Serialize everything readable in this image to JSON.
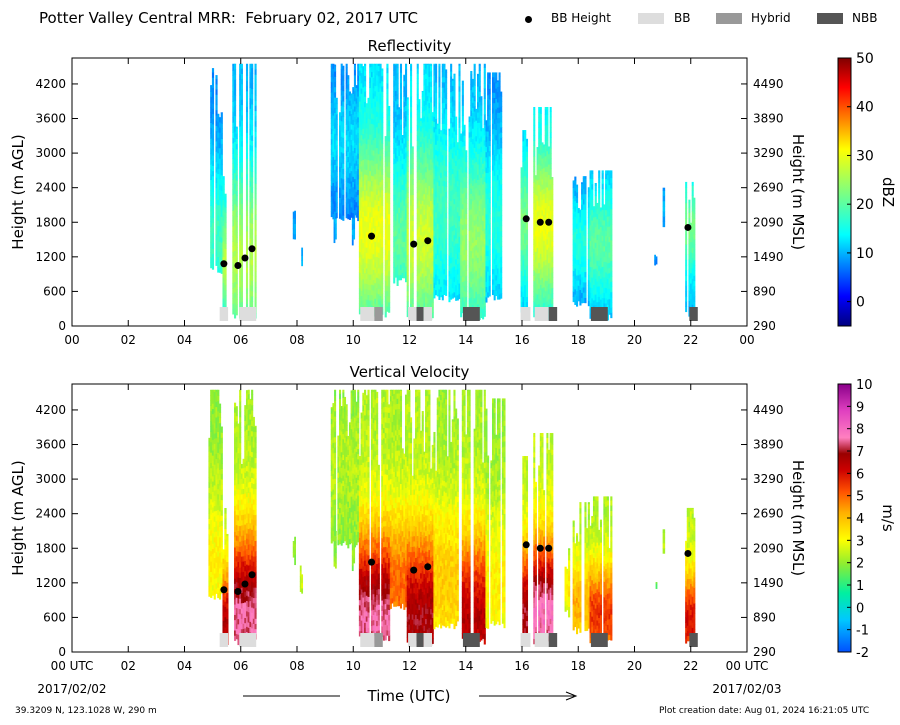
{
  "header": {
    "title": "Potter Valley Central MRR:  February 02, 2017 UTC",
    "legend": [
      {
        "label": "BB Height",
        "kind": "dot",
        "color": "#000000"
      },
      {
        "label": "BB",
        "kind": "box",
        "color": "#dddddd"
      },
      {
        "label": "Hybrid",
        "kind": "box",
        "color": "#999999"
      },
      {
        "label": "NBB",
        "kind": "box",
        "color": "#555555"
      }
    ]
  },
  "shared": {
    "x_ticks": [
      "00",
      "02",
      "04",
      "06",
      "08",
      "10",
      "12",
      "14",
      "16",
      "18",
      "20",
      "22",
      "00"
    ],
    "bottom_first_tick": "00 UTC",
    "bottom_last_tick": "00 UTC",
    "date_start": "2017/02/02",
    "date_end": "2017/02/03",
    "xlabel": "Time (UTC)",
    "ylabel_left": "Height (m AGL)",
    "ylabel_right": "Height (m MSL)",
    "y_ticks": [
      "4200",
      "3600",
      "3000",
      "2400",
      "1800",
      "1200",
      "600",
      "0"
    ],
    "y_ticks_right": [
      "4490",
      "3890",
      "3290",
      "2690",
      "2090",
      "1490",
      "890",
      "290"
    ]
  },
  "footer": {
    "location": "39.3209 N, 123.1028 W, 290 m",
    "created": "Plot creation date: Aug 01, 2024 16:21:05 UTC"
  },
  "chart_data": [
    {
      "type": "heatmap",
      "title": "Reflectivity",
      "xlabel": "Time (UTC)",
      "ylabel": "Height (m AGL)",
      "ylabel_right": "Height (m MSL)",
      "xlim": [
        0,
        24
      ],
      "ylim": [
        0,
        4650
      ],
      "colorbar": {
        "label": "dBZ",
        "min": -5,
        "max": 50,
        "ticks": [
          "50",
          "40",
          "30",
          "20",
          "10",
          "0"
        ],
        "tick_values": [
          50,
          40,
          30,
          20,
          10,
          0
        ]
      },
      "bb_height_points": [
        {
          "x": 5.4,
          "y": 1080
        },
        {
          "x": 5.9,
          "y": 1050
        },
        {
          "x": 6.15,
          "y": 1180
        },
        {
          "x": 6.4,
          "y": 1340
        },
        {
          "x": 10.65,
          "y": 1560
        },
        {
          "x": 12.15,
          "y": 1420
        },
        {
          "x": 12.65,
          "y": 1480
        },
        {
          "x": 16.15,
          "y": 1860
        },
        {
          "x": 16.65,
          "y": 1800
        },
        {
          "x": 16.95,
          "y": 1800
        },
        {
          "x": 21.9,
          "y": 1710
        }
      ],
      "bb_type_boxes": [
        {
          "start": 5.25,
          "end": 5.55,
          "type": "BB"
        },
        {
          "start": 5.95,
          "end": 6.55,
          "type": "BB"
        },
        {
          "start": 10.25,
          "end": 10.75,
          "type": "BB"
        },
        {
          "start": 10.75,
          "end": 11.05,
          "type": "Hybrid"
        },
        {
          "start": 11.95,
          "end": 12.25,
          "type": "BB"
        },
        {
          "start": 12.25,
          "end": 12.5,
          "type": "NBB"
        },
        {
          "start": 12.5,
          "end": 12.8,
          "type": "BB"
        },
        {
          "start": 13.9,
          "end": 14.5,
          "type": "NBB"
        },
        {
          "start": 15.95,
          "end": 16.3,
          "type": "BB"
        },
        {
          "start": 16.45,
          "end": 16.95,
          "type": "BB"
        },
        {
          "start": 16.95,
          "end": 17.25,
          "type": "NBB"
        },
        {
          "start": 18.45,
          "end": 19.05,
          "type": "NBB"
        },
        {
          "start": 21.95,
          "end": 22.25,
          "type": "NBB"
        }
      ],
      "echo_columns": [
        {
          "start": 4.85,
          "end": 5.35,
          "top": 4550,
          "bottom": 900,
          "peak_height": 1500,
          "peak": 18,
          "base": 8
        },
        {
          "start": 5.35,
          "end": 5.55,
          "top": 2600,
          "bottom": 100,
          "peak_height": 1100,
          "peak": 26,
          "base": 12
        },
        {
          "start": 5.7,
          "end": 6.55,
          "top": 4550,
          "bottom": 100,
          "peak_height": 1200,
          "peak": 26,
          "base": 10
        },
        {
          "start": 7.85,
          "end": 7.95,
          "top": 2000,
          "bottom": 1500,
          "peak_height": 1700,
          "peak": 10,
          "base": 6
        },
        {
          "start": 8.1,
          "end": 8.2,
          "top": 1500,
          "bottom": 900,
          "peak_height": 1200,
          "peak": 10,
          "base": 6
        },
        {
          "start": 9.3,
          "end": 9.4,
          "top": 2100,
          "bottom": 1400,
          "peak_height": 1700,
          "peak": 10,
          "base": 6
        },
        {
          "start": 9.95,
          "end": 10.05,
          "top": 2000,
          "bottom": 1400,
          "peak_height": 1700,
          "peak": 10,
          "base": 6
        },
        {
          "start": 9.2,
          "end": 10.2,
          "top": 4550,
          "bottom": 1800,
          "peak_height": 3200,
          "peak": 12,
          "base": 7
        },
        {
          "start": 10.2,
          "end": 11.3,
          "top": 4550,
          "bottom": 150,
          "peak_height": 1600,
          "peak": 30,
          "base": 12
        },
        {
          "start": 11.3,
          "end": 11.9,
          "top": 4550,
          "bottom": 700,
          "peak_height": 1500,
          "peak": 20,
          "base": 10
        },
        {
          "start": 11.9,
          "end": 12.85,
          "top": 4550,
          "bottom": 100,
          "peak_height": 1500,
          "peak": 28,
          "base": 12
        },
        {
          "start": 12.85,
          "end": 13.8,
          "top": 4550,
          "bottom": 400,
          "peak_height": 2000,
          "peak": 18,
          "base": 10
        },
        {
          "start": 13.8,
          "end": 14.7,
          "top": 4550,
          "bottom": 100,
          "peak_height": 1400,
          "peak": 24,
          "base": 10
        },
        {
          "start": 14.7,
          "end": 15.4,
          "top": 4400,
          "bottom": 400,
          "peak_height": 1800,
          "peak": 16,
          "base": 8
        },
        {
          "start": 15.95,
          "end": 16.2,
          "top": 3400,
          "bottom": 100,
          "peak_height": 1800,
          "peak": 22,
          "base": 10
        },
        {
          "start": 16.4,
          "end": 17.1,
          "top": 3800,
          "bottom": 100,
          "peak_height": 1700,
          "peak": 30,
          "base": 12
        },
        {
          "start": 17.45,
          "end": 17.7,
          "top": 1800,
          "bottom": 600,
          "peak_height": 1200,
          "peak": 14,
          "base": 8
        },
        {
          "start": 17.8,
          "end": 18.4,
          "top": 2600,
          "bottom": 300,
          "peak_height": 1400,
          "peak": 16,
          "base": 8
        },
        {
          "start": 18.4,
          "end": 19.2,
          "top": 2700,
          "bottom": 100,
          "peak_height": 1400,
          "peak": 20,
          "base": 10
        },
        {
          "start": 20.7,
          "end": 20.8,
          "top": 1250,
          "bottom": 1050,
          "peak_height": 1150,
          "peak": 8,
          "base": 6
        },
        {
          "start": 21.0,
          "end": 21.15,
          "top": 2400,
          "bottom": 1600,
          "peak_height": 2000,
          "peak": 10,
          "base": 6
        },
        {
          "start": 21.8,
          "end": 22.15,
          "top": 2500,
          "bottom": 150,
          "peak_height": 1700,
          "peak": 22,
          "base": 10
        }
      ]
    },
    {
      "type": "heatmap",
      "title": "Vertical Velocity",
      "xlabel": "Time (UTC)",
      "ylabel": "Height (m AGL)",
      "ylabel_right": "Height (m MSL)",
      "xlim": [
        0,
        24
      ],
      "ylim": [
        0,
        4650
      ],
      "colorbar": {
        "label": "m/s",
        "min": -2,
        "max": 10,
        "ticks": [
          "10",
          "9",
          "8",
          "7",
          "6",
          "5",
          "4",
          "3",
          "2",
          "1",
          "0",
          "-1",
          "-2"
        ],
        "tick_values": [
          10,
          9,
          8,
          7,
          6,
          5,
          4,
          3,
          2,
          1,
          0,
          -1,
          -2
        ]
      },
      "bb_height_points": [
        {
          "x": 5.4,
          "y": 1080
        },
        {
          "x": 5.9,
          "y": 1050
        },
        {
          "x": 6.15,
          "y": 1180
        },
        {
          "x": 6.4,
          "y": 1340
        },
        {
          "x": 10.65,
          "y": 1560
        },
        {
          "x": 12.15,
          "y": 1420
        },
        {
          "x": 12.65,
          "y": 1480
        },
        {
          "x": 16.15,
          "y": 1860
        },
        {
          "x": 16.65,
          "y": 1800
        },
        {
          "x": 16.95,
          "y": 1800
        },
        {
          "x": 21.9,
          "y": 1710
        }
      ],
      "bb_type_boxes": [
        {
          "start": 5.25,
          "end": 5.55,
          "type": "BB"
        },
        {
          "start": 5.95,
          "end": 6.55,
          "type": "BB"
        },
        {
          "start": 10.25,
          "end": 10.75,
          "type": "BB"
        },
        {
          "start": 10.75,
          "end": 11.05,
          "type": "Hybrid"
        },
        {
          "start": 11.95,
          "end": 12.25,
          "type": "BB"
        },
        {
          "start": 12.25,
          "end": 12.5,
          "type": "NBB"
        },
        {
          "start": 12.5,
          "end": 12.8,
          "type": "BB"
        },
        {
          "start": 13.9,
          "end": 14.5,
          "type": "NBB"
        },
        {
          "start": 15.95,
          "end": 16.3,
          "type": "BB"
        },
        {
          "start": 16.45,
          "end": 16.95,
          "type": "BB"
        },
        {
          "start": 16.95,
          "end": 17.25,
          "type": "NBB"
        },
        {
          "start": 18.45,
          "end": 19.05,
          "type": "NBB"
        },
        {
          "start": 21.95,
          "end": 22.25,
          "type": "NBB"
        }
      ],
      "echo_columns": [
        {
          "start": 4.85,
          "end": 5.35,
          "top": 4550,
          "bottom": 900,
          "peak_height": 1500,
          "peak": 3.2,
          "base": 2.0
        },
        {
          "start": 5.35,
          "end": 5.55,
          "top": 2600,
          "bottom": 100,
          "peak_height": 500,
          "peak": 6.5,
          "base": 2.5
        },
        {
          "start": 5.7,
          "end": 6.55,
          "top": 4550,
          "bottom": 100,
          "peak_height": 500,
          "peak": 7.5,
          "base": 2.2
        },
        {
          "start": 7.85,
          "end": 7.95,
          "top": 2000,
          "bottom": 1500,
          "peak_height": 1700,
          "peak": 2.0,
          "base": 1.8
        },
        {
          "start": 8.1,
          "end": 8.2,
          "top": 1500,
          "bottom": 900,
          "peak_height": 1200,
          "peak": 2.6,
          "base": 2.2
        },
        {
          "start": 9.3,
          "end": 9.4,
          "top": 2100,
          "bottom": 1400,
          "peak_height": 1700,
          "peak": 2.0,
          "base": 1.8
        },
        {
          "start": 9.95,
          "end": 10.05,
          "top": 2000,
          "bottom": 1400,
          "peak_height": 1700,
          "peak": 2.0,
          "base": 1.8
        },
        {
          "start": 9.2,
          "end": 10.2,
          "top": 4550,
          "bottom": 1800,
          "peak_height": 3200,
          "peak": 2.3,
          "base": 1.9
        },
        {
          "start": 10.2,
          "end": 11.3,
          "top": 4550,
          "bottom": 150,
          "peak_height": 500,
          "peak": 7.5,
          "base": 2.3
        },
        {
          "start": 11.3,
          "end": 11.9,
          "top": 4550,
          "bottom": 700,
          "peak_height": 1100,
          "peak": 5.0,
          "base": 2.2
        },
        {
          "start": 11.9,
          "end": 12.85,
          "top": 4550,
          "bottom": 100,
          "peak_height": 500,
          "peak": 6.8,
          "base": 2.3
        },
        {
          "start": 12.85,
          "end": 13.8,
          "top": 4550,
          "bottom": 400,
          "peak_height": 1200,
          "peak": 3.8,
          "base": 2.1
        },
        {
          "start": 13.8,
          "end": 14.7,
          "top": 4550,
          "bottom": 100,
          "peak_height": 500,
          "peak": 6.5,
          "base": 2.2
        },
        {
          "start": 14.7,
          "end": 15.4,
          "top": 4400,
          "bottom": 400,
          "peak_height": 1200,
          "peak": 3.2,
          "base": 2.0
        },
        {
          "start": 15.95,
          "end": 16.2,
          "top": 3400,
          "bottom": 100,
          "peak_height": 600,
          "peak": 7.0,
          "base": 2.4
        },
        {
          "start": 16.4,
          "end": 17.1,
          "top": 3800,
          "bottom": 100,
          "peak_height": 600,
          "peak": 7.8,
          "base": 2.4
        },
        {
          "start": 17.45,
          "end": 17.7,
          "top": 1800,
          "bottom": 600,
          "peak_height": 1100,
          "peak": 3.4,
          "base": 2.2
        },
        {
          "start": 17.8,
          "end": 18.4,
          "top": 2600,
          "bottom": 300,
          "peak_height": 800,
          "peak": 4.2,
          "base": 2.2
        },
        {
          "start": 18.4,
          "end": 19.2,
          "top": 2700,
          "bottom": 100,
          "peak_height": 600,
          "peak": 5.5,
          "base": 2.2
        },
        {
          "start": 20.7,
          "end": 20.8,
          "top": 1250,
          "bottom": 1050,
          "peak_height": 1150,
          "peak": 1.6,
          "base": 1.4
        },
        {
          "start": 21.0,
          "end": 21.15,
          "top": 2400,
          "bottom": 1600,
          "peak_height": 2000,
          "peak": 2.4,
          "base": 2.0
        },
        {
          "start": 21.8,
          "end": 22.15,
          "top": 2500,
          "bottom": 150,
          "peak_height": 500,
          "peak": 6.0,
          "base": 2.4
        }
      ]
    }
  ]
}
